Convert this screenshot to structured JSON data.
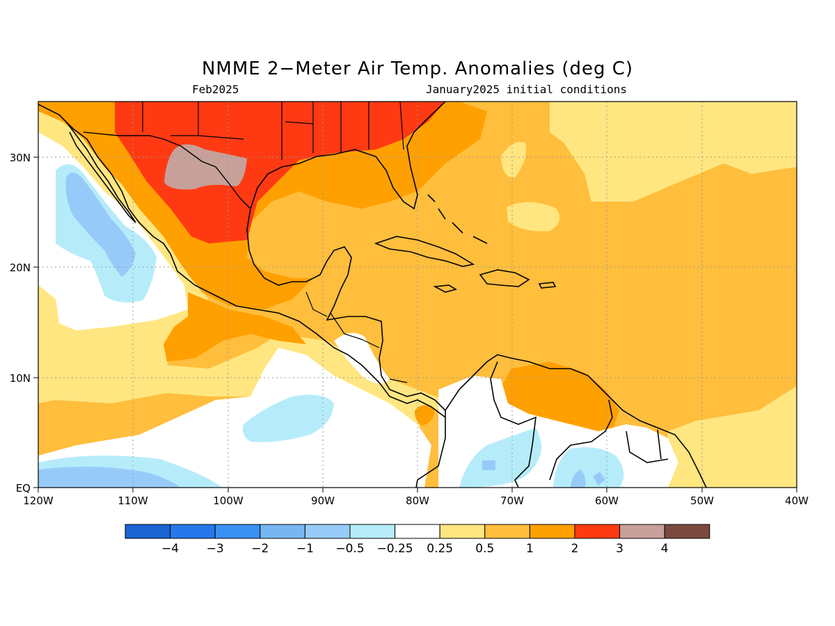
{
  "title": "NMME 2−Meter Air Temp. Anomalies (deg C)",
  "subtitle_left": "Feb2025",
  "subtitle_right": "January2025 initial conditions",
  "map": {
    "lon_labels": [
      "120W",
      "110W",
      "100W",
      "90W",
      "80W",
      "70W",
      "60W",
      "50W",
      "40W"
    ],
    "lat_labels": [
      "EQ",
      "10N",
      "20N",
      "30N"
    ],
    "lon_range": [
      -120,
      -40
    ],
    "lat_range": [
      0,
      35
    ],
    "grid": "dotted"
  },
  "colorbar": {
    "labels": [
      "−4",
      "−3",
      "−2",
      "−1",
      "−0.5",
      "−0.25",
      "0.25",
      "0.5",
      "1",
      "2",
      "3",
      "4"
    ],
    "colors": [
      "#1a63d2",
      "#2577ea",
      "#3a91f2",
      "#78b6f3",
      "#96cbf9",
      "#b6ecfa",
      "#ffffff",
      "#ffe680",
      "#ffbe3c",
      "#ffa001",
      "#ff3a12",
      "#c7a09a",
      "#7a4a3f"
    ]
  },
  "colors": {
    "ocean_white": "#ffffff",
    "pale_yellow": "#ffe680",
    "light_orange": "#ffbe3c",
    "orange": "#ffa001",
    "red": "#ff3a12",
    "pink_brown": "#c7a09a",
    "light_cyan": "#b6ecfa",
    "light_blue": "#96cbf9",
    "blue": "#78b6f3"
  }
}
